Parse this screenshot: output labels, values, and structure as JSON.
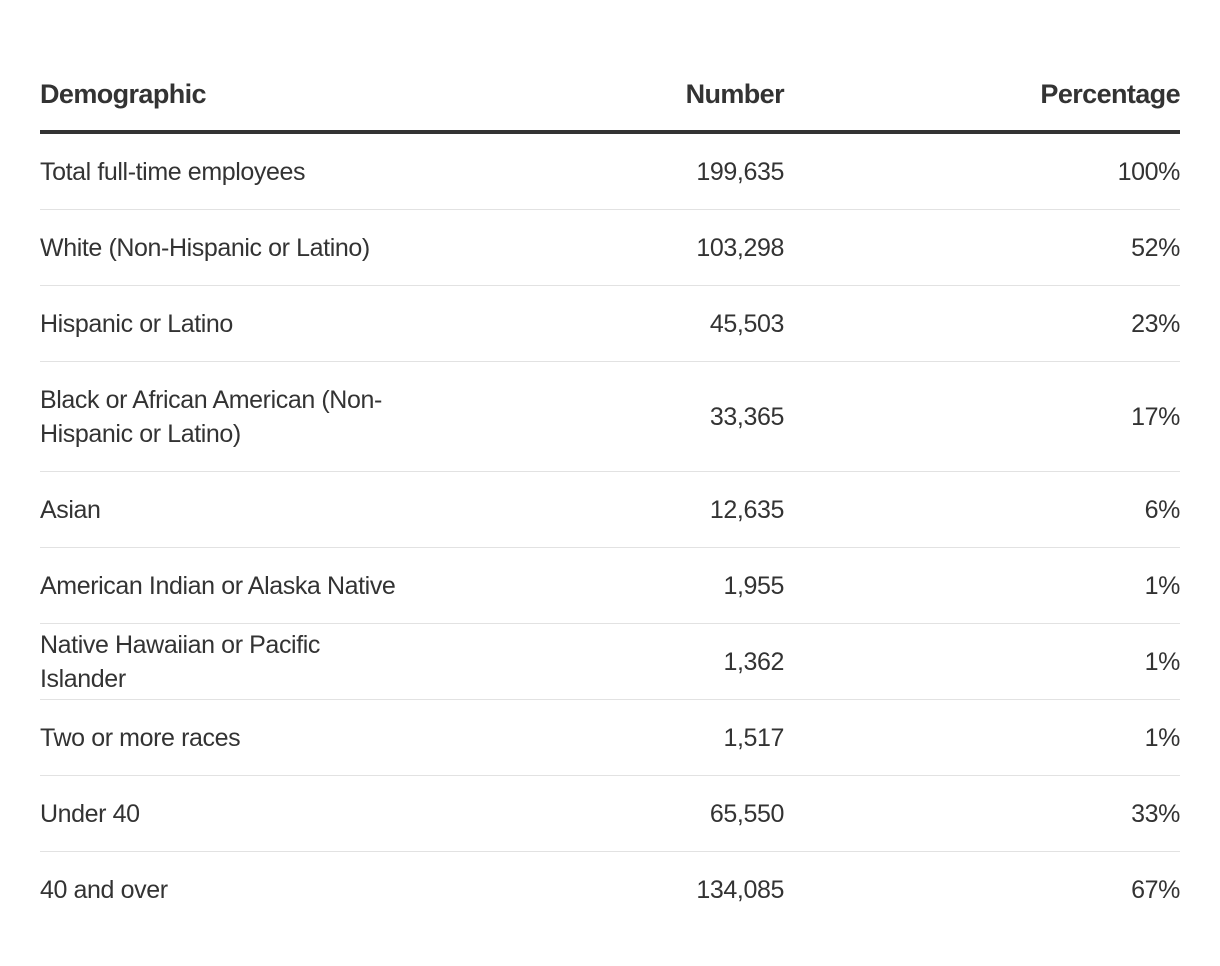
{
  "table": {
    "headers": {
      "demographic": "Demographic",
      "number": "Number",
      "percentage": "Percentage"
    },
    "rows": [
      {
        "demographic": "Total full-time employees",
        "number": "199,635",
        "percentage": "100%"
      },
      {
        "demographic": "White (Non-Hispanic or Latino)",
        "number": "103,298",
        "percentage": "52%"
      },
      {
        "demographic": "Hispanic or Latino",
        "number": "45,503",
        "percentage": "23%"
      },
      {
        "demographic": "Black or African American (Non-Hispanic or Latino)",
        "number": "33,365",
        "percentage": "17%"
      },
      {
        "demographic": "Asian",
        "number": "12,635",
        "percentage": "6%"
      },
      {
        "demographic": "American Indian or Alaska Native",
        "number": "1,955",
        "percentage": "1%"
      },
      {
        "demographic": "Native Hawaiian or Pacific Islander",
        "number": "1,362",
        "percentage": "1%"
      },
      {
        "demographic": "Two or more races",
        "number": "1,517",
        "percentage": "1%"
      },
      {
        "demographic": "Under 40",
        "number": "65,550",
        "percentage": "33%"
      },
      {
        "demographic": "40 and over",
        "number": "134,085",
        "percentage": "67%"
      }
    ]
  }
}
